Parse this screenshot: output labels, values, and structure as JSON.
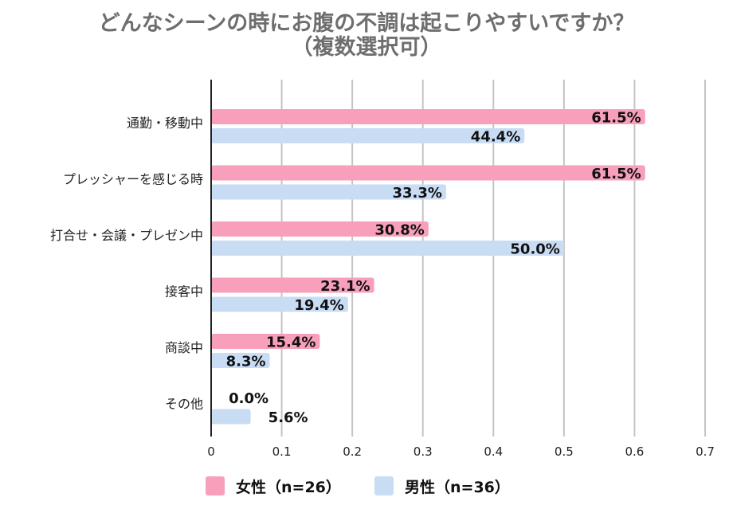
{
  "title_line1": "どんなシーンの時にお腹の不調は起こりやすいですか？",
  "title_line2": "（複数選択可）",
  "chart_data": {
    "type": "bar",
    "orientation": "horizontal",
    "categories": [
      "通勤・移動中",
      "プレッシャーを感じる時",
      "打合せ・会議・プレゼン中",
      "接客中",
      "商談中",
      "その他"
    ],
    "series": [
      {
        "name": "女性（n=26）",
        "color": "#f8a0bb",
        "values": [
          0.615,
          0.615,
          0.308,
          0.231,
          0.154,
          0.0
        ],
        "labels": [
          "61.5%",
          "61.5%",
          "30.8%",
          "23.1%",
          "15.4%",
          "0.0%"
        ]
      },
      {
        "name": "男性（n=36）",
        "color": "#c8dcf4",
        "values": [
          0.444,
          0.333,
          0.5,
          0.194,
          0.083,
          0.056
        ],
        "labels": [
          "44.4%",
          "33.3%",
          "50.0%",
          "19.4%",
          "8.3%",
          "5.6%"
        ]
      }
    ],
    "xlim": [
      0,
      0.7
    ],
    "xticks": [
      "0",
      "0.1",
      "0.2",
      "0.3",
      "0.4",
      "0.5",
      "0.6",
      "0.7"
    ],
    "grid": true,
    "legend_position": "bottom"
  },
  "legend": {
    "female_label": "女性（n=26）",
    "female_color": "#f8a0bb",
    "male_label": "男性（n=36）",
    "male_color": "#c8dcf4"
  }
}
